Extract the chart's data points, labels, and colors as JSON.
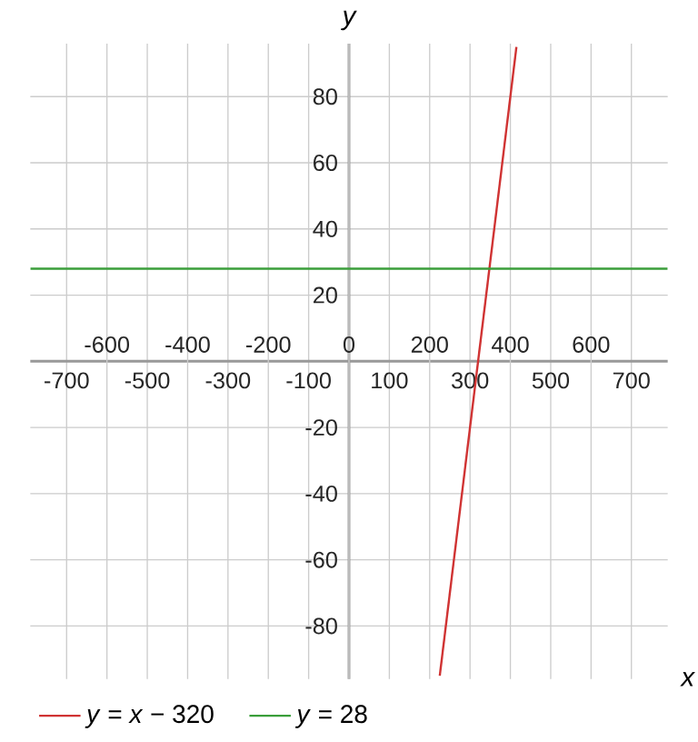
{
  "chart_data": {
    "type": "line",
    "xlabel": "x",
    "ylabel": "y",
    "xlim": [
      -790,
      790
    ],
    "ylim": [
      -96,
      96
    ],
    "xticks": [
      -700,
      -500,
      -300,
      -100,
      100,
      300,
      500,
      700
    ],
    "x2lim": [
      -790,
      790
    ],
    "x2ticks": [
      -600,
      -400,
      -200,
      0,
      200,
      400,
      600
    ],
    "yticks": [
      -80,
      -60,
      -40,
      -20,
      20,
      40,
      60,
      80
    ],
    "grid": true,
    "legend": "bottom",
    "series": [
      {
        "name": "*y* = *x* − 320",
        "color": "#d03333",
        "x": [
          225,
          415
        ],
        "values": [
          -95,
          95
        ]
      },
      {
        "name": "*y* = 28",
        "color": "#3a9e3a",
        "x": [
          -790,
          790
        ],
        "values": [
          28,
          28
        ]
      }
    ]
  }
}
